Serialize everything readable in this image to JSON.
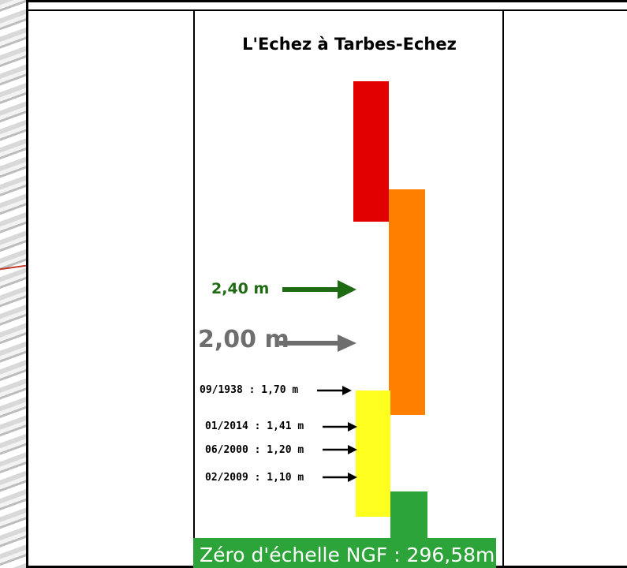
{
  "diagram": {
    "title": "L'Echez à Tarbes-Echez",
    "colors": {
      "red": "#e30000",
      "orange": "#ff7f00",
      "yellow": "#ffff20",
      "green": "#2ca43a",
      "highlight_green": "#1f6b14",
      "highlight_grey": "#6e6e6e"
    },
    "markers": [
      {
        "label": "2,40 m",
        "color": "#1f6b14",
        "style": "highlight"
      },
      {
        "label": "2,00 m",
        "color": "#6e6e6e",
        "style": "highlight"
      },
      {
        "label": "09/1938 : 1,70 m",
        "color": "#000000",
        "style": "historic"
      },
      {
        "label": "01/2014 : 1,41 m",
        "color": "#000000",
        "style": "historic"
      },
      {
        "label": "06/2000 : 1,20 m",
        "color": "#000000",
        "style": "historic"
      },
      {
        "label": "02/2009 : 1,10 m",
        "color": "#000000",
        "style": "historic"
      }
    ],
    "zero_label": "Zéro d'échelle NGF : 296,58m"
  }
}
